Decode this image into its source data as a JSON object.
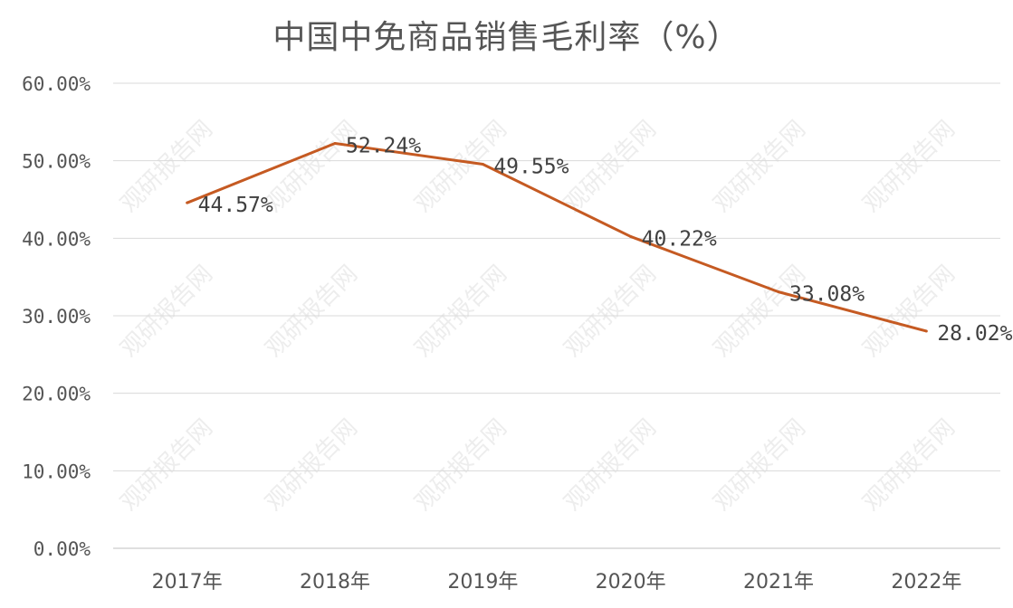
{
  "chart_data": {
    "type": "line",
    "title": "中国中免商品销售毛利率（%）",
    "categories": [
      "2017年",
      "2018年",
      "2019年",
      "2020年",
      "2021年",
      "2022年"
    ],
    "series": [
      {
        "values": [
          44.57,
          52.24,
          49.55,
          40.22,
          33.08,
          28.02
        ],
        "data_labels": [
          "44.57%",
          "52.24%",
          "49.55%",
          "40.22%",
          "33.08%",
          "28.02%"
        ],
        "color": "#C55A22"
      }
    ],
    "y_ticks": [
      "0.00%",
      "10.00%",
      "20.00%",
      "30.00%",
      "40.00%",
      "50.00%",
      "60.00%"
    ],
    "ylim": [
      0,
      60
    ],
    "grid": true,
    "legend": "none"
  },
  "watermark": "观研报告网",
  "colors": {
    "line": "#C55A22",
    "grid": "#d9d9d9",
    "text": "#555555"
  }
}
